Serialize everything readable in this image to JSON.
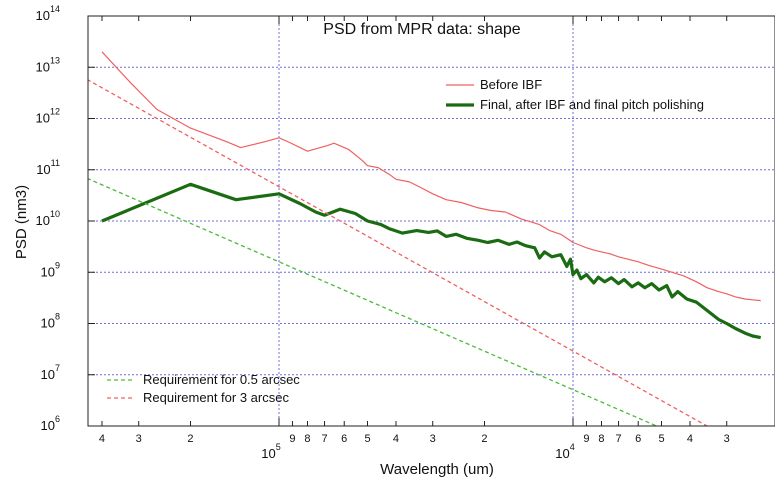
{
  "chart_data": {
    "type": "line",
    "title": "PSD from MPR data: shape",
    "xlabel": "Wavelength (um)",
    "ylabel": "PSD (nm3)",
    "x_scale": "log-reversed",
    "y_scale": "log",
    "xlim": [
      450000,
      2300
    ],
    "ylim": [
      1000000.0,
      100000000000000.0
    ],
    "grid": true,
    "x_major_ticks": [
      {
        "value": 100000,
        "base": "10",
        "exp": "5"
      },
      {
        "value": 10000,
        "base": "10",
        "exp": "4"
      }
    ],
    "x_minor_ticks": [
      {
        "value": 400000,
        "label": "4"
      },
      {
        "value": 300000,
        "label": "3"
      },
      {
        "value": 200000,
        "label": "2"
      },
      {
        "value": 90000,
        "label": "9"
      },
      {
        "value": 80000,
        "label": "8"
      },
      {
        "value": 70000,
        "label": "7"
      },
      {
        "value": 60000,
        "label": "6"
      },
      {
        "value": 50000,
        "label": "5"
      },
      {
        "value": 40000,
        "label": "4"
      },
      {
        "value": 30000,
        "label": "3"
      },
      {
        "value": 20000,
        "label": "2"
      },
      {
        "value": 9000,
        "label": "9"
      },
      {
        "value": 8000,
        "label": "8"
      },
      {
        "value": 7000,
        "label": "7"
      },
      {
        "value": 6000,
        "label": "6"
      },
      {
        "value": 5000,
        "label": "5"
      },
      {
        "value": 4000,
        "label": "4"
      },
      {
        "value": 3000,
        "label": "3"
      }
    ],
    "y_ticks": [
      {
        "value": 1000000.0,
        "base": "10",
        "exp": "6"
      },
      {
        "value": 10000000.0,
        "base": "10",
        "exp": "7"
      },
      {
        "value": 100000000.0,
        "base": "10",
        "exp": "8"
      },
      {
        "value": 1000000000.0,
        "base": "10",
        "exp": "9"
      },
      {
        "value": 10000000000.0,
        "base": "10",
        "exp": "10"
      },
      {
        "value": 100000000000.0,
        "base": "10",
        "exp": "11"
      },
      {
        "value": 1000000000000.0,
        "base": "10",
        "exp": "12"
      },
      {
        "value": 10000000000000.0,
        "base": "10",
        "exp": "13"
      },
      {
        "value": 100000000000000.0,
        "base": "10",
        "exp": "14"
      }
    ],
    "legend_top": {
      "placement": "top-right",
      "entries": [
        {
          "series": 0,
          "label": "Before IBF"
        },
        {
          "series": 1,
          "label": "Final, after IBF and final pitch polishing"
        }
      ]
    },
    "legend_bottom": {
      "placement": "bottom-left",
      "entries": [
        {
          "series": 2,
          "label": "Requirement for 0.5 arcsec"
        },
        {
          "series": 3,
          "label": "Requirement for 3 arcsec"
        }
      ]
    },
    "series": [
      {
        "name": "Before IBF",
        "color": "#f06060",
        "style": "solid",
        "width": 1.2,
        "points": [
          [
            400000,
            20000000000000.0
          ],
          [
            320000,
            5000000000000.0
          ],
          [
            260000,
            1500000000000.0
          ],
          [
            200000,
            650000000000.0
          ],
          [
            150000,
            350000000000.0
          ],
          [
            135000,
            270000000000.0
          ],
          [
            110000,
            360000000000.0
          ],
          [
            100000,
            420000000000.0
          ],
          [
            92000,
            340000000000.0
          ],
          [
            80000,
            230000000000.0
          ],
          [
            68000,
            300000000000.0
          ],
          [
            65000,
            330000000000.0
          ],
          [
            58000,
            250000000000.0
          ],
          [
            52000,
            150000000000.0
          ],
          [
            50000,
            120000000000.0
          ],
          [
            46000,
            110000000000.0
          ],
          [
            42000,
            80000000000.0
          ],
          [
            40000,
            65000000000.0
          ],
          [
            36000,
            58000000000.0
          ],
          [
            33000,
            45000000000.0
          ],
          [
            30000,
            34000000000.0
          ],
          [
            27000,
            26000000000.0
          ],
          [
            24000,
            23000000000.0
          ],
          [
            21000,
            18000000000.0
          ],
          [
            19000,
            16000000000.0
          ],
          [
            17000,
            15000000000.0
          ],
          [
            15000,
            11000000000.0
          ],
          [
            13000,
            8500000000.0
          ],
          [
            12000,
            6500000000.0
          ],
          [
            11000,
            5500000000.0
          ],
          [
            10500,
            4600000000.0
          ],
          [
            10000,
            3800000000.0
          ],
          [
            9500,
            3400000000.0
          ],
          [
            9000,
            3000000000.0
          ],
          [
            8500,
            2700000000.0
          ],
          [
            8000,
            2500000000.0
          ],
          [
            7500,
            2300000000.0
          ],
          [
            7000,
            2000000000.0
          ],
          [
            6500,
            1800000000.0
          ],
          [
            6000,
            1600000000.0
          ],
          [
            5500,
            1350000000.0
          ],
          [
            5000,
            1150000000.0
          ],
          [
            4600,
            1000000000.0
          ],
          [
            4200,
            850000000.0
          ],
          [
            3800,
            650000000.0
          ],
          [
            3500,
            500000000.0
          ],
          [
            3200,
            420000000.0
          ],
          [
            3000,
            380000000.0
          ],
          [
            2800,
            330000000.0
          ],
          [
            2600,
            300000000.0
          ],
          [
            2450,
            290000000.0
          ],
          [
            2300,
            280000000.0
          ]
        ]
      },
      {
        "name": "Final, after IBF and final pitch polishing",
        "color": "#1a6b12",
        "style": "solid",
        "width": 3.2,
        "points": [
          [
            400000,
            10000000000.0
          ],
          [
            200000,
            52000000000.0
          ],
          [
            140000,
            26000000000.0
          ],
          [
            100000,
            34000000000.0
          ],
          [
            85000,
            22000000000.0
          ],
          [
            75000,
            15000000000.0
          ],
          [
            70000,
            13000000000.0
          ],
          [
            62000,
            17000000000.0
          ],
          [
            55000,
            14000000000.0
          ],
          [
            50000,
            10000000000.0
          ],
          [
            45000,
            8500000000.0
          ],
          [
            42000,
            7000000000.0
          ],
          [
            38000,
            5800000000.0
          ],
          [
            34000,
            6500000000.0
          ],
          [
            31000,
            6000000000.0
          ],
          [
            29000,
            6400000000.0
          ],
          [
            27000,
            5000000000.0
          ],
          [
            25000,
            5500000000.0
          ],
          [
            23000,
            4600000000.0
          ],
          [
            21000,
            4200000000.0
          ],
          [
            19500,
            3800000000.0
          ],
          [
            18000,
            4200000000.0
          ],
          [
            16500,
            3500000000.0
          ],
          [
            15500,
            3900000000.0
          ],
          [
            14500,
            3300000000.0
          ],
          [
            13500,
            3000000000.0
          ],
          [
            13000,
            1900000000.0
          ],
          [
            12500,
            2500000000.0
          ],
          [
            11800,
            2000000000.0
          ],
          [
            11000,
            2200000000.0
          ],
          [
            10500,
            1300000000.0
          ],
          [
            10200,
            1800000000.0
          ],
          [
            10000,
            900000000.0
          ],
          [
            9700,
            1100000000.0
          ],
          [
            9400,
            750000000.0
          ],
          [
            9000,
            900000000.0
          ],
          [
            8500,
            620000000.0
          ],
          [
            8200,
            800000000.0
          ],
          [
            7800,
            650000000.0
          ],
          [
            7400,
            780000000.0
          ],
          [
            7000,
            600000000.0
          ],
          [
            6700,
            720000000.0
          ],
          [
            6300,
            520000000.0
          ],
          [
            6000,
            620000000.0
          ],
          [
            5700,
            500000000.0
          ],
          [
            5400,
            600000000.0
          ],
          [
            5100,
            450000000.0
          ],
          [
            4800,
            550000000.0
          ],
          [
            4600,
            330000000.0
          ],
          [
            4400,
            420000000.0
          ],
          [
            4100,
            300000000.0
          ],
          [
            3800,
            260000000.0
          ],
          [
            3500,
            180000000.0
          ],
          [
            3200,
            120000000.0
          ],
          [
            3000,
            100000000.0
          ],
          [
            2800,
            80000000.0
          ],
          [
            2600,
            65000000.0
          ],
          [
            2450,
            57000000.0
          ],
          [
            2300,
            53000000.0
          ]
        ]
      },
      {
        "name": "Requirement for 0.5 arcsec",
        "color": "#4cbb3a",
        "style": "dashed",
        "width": 1.3,
        "points": [
          [
            450000,
            68000000000.0
          ],
          [
            5200,
            1000000.0
          ]
        ]
      },
      {
        "name": "Requirement for 3 arcsec",
        "color": "#f06060",
        "style": "dashed",
        "width": 1.3,
        "points": [
          [
            450000,
            5800000000000.0
          ],
          [
            3500,
            1000000.0
          ]
        ]
      }
    ]
  }
}
